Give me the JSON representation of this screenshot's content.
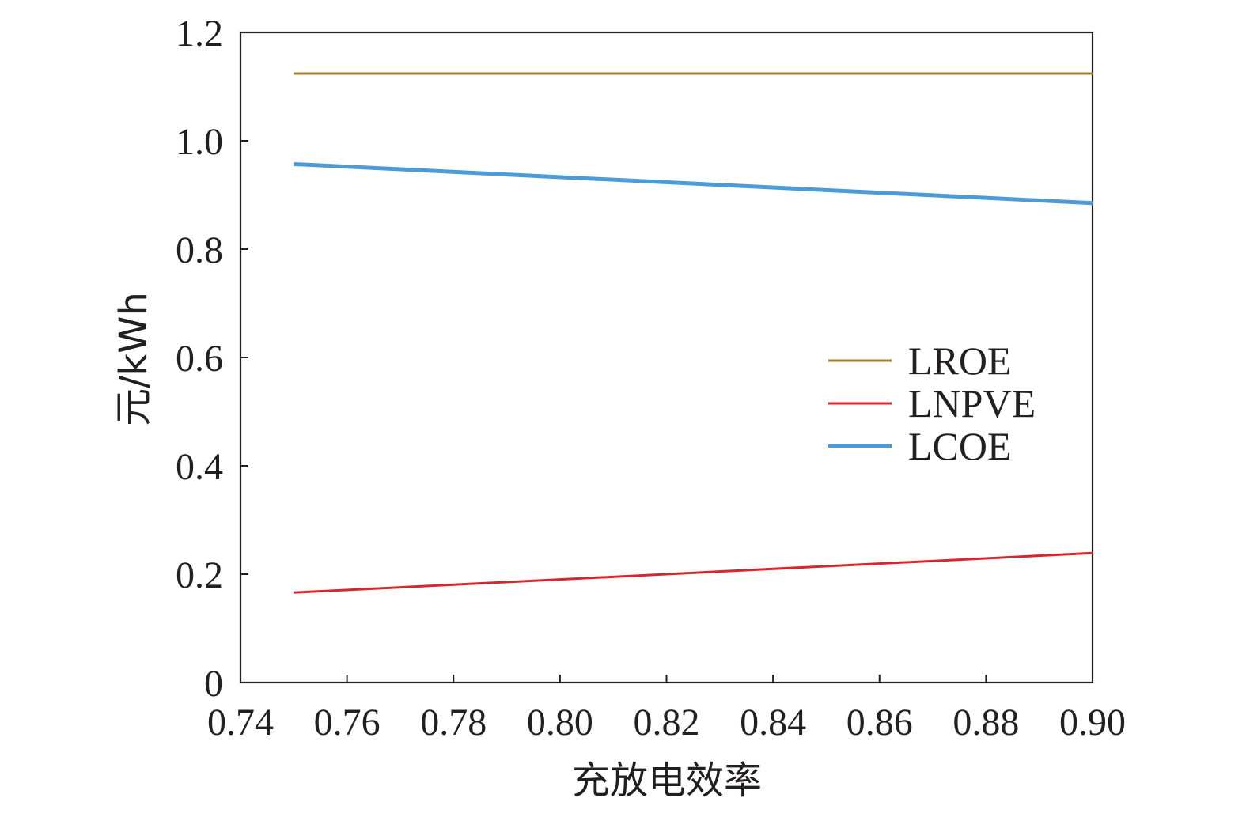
{
  "chart_data": {
    "type": "line",
    "title": "",
    "xlabel": "充放电效率",
    "ylabel": "元/kWh",
    "xlim": [
      0.74,
      0.9
    ],
    "ylim": [
      0,
      1.2
    ],
    "x_ticks": [
      "0.74",
      "0.76",
      "0.78",
      "0.80",
      "0.82",
      "0.84",
      "0.86",
      "0.88",
      "0.90"
    ],
    "y_ticks": [
      "0",
      "0.2",
      "0.4",
      "0.6",
      "0.8",
      "1.0",
      "1.2"
    ],
    "grid": false,
    "legend_position": "right",
    "series": [
      {
        "name": "LROE",
        "color": "#a07e2c",
        "x": [
          0.75,
          0.9
        ],
        "y": [
          1.124,
          1.124
        ]
      },
      {
        "name": "LNPVE",
        "color": "#d7262d",
        "x": [
          0.75,
          0.9
        ],
        "y": [
          0.166,
          0.239
        ]
      },
      {
        "name": "LCOE",
        "color": "#4c9bd9",
        "x": [
          0.75,
          0.9
        ],
        "y": [
          0.957,
          0.885
        ]
      }
    ]
  }
}
